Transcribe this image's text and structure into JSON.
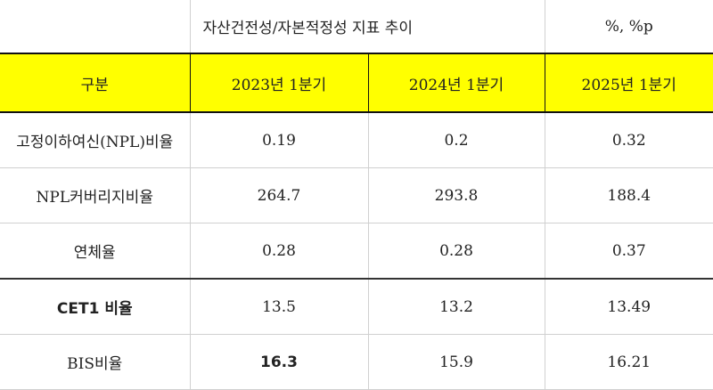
{
  "header": {
    "title": "자산건전성/자본적정성 지표 추이",
    "unit": "%, %p"
  },
  "table": {
    "columns": [
      "구분",
      "2023년 1분기",
      "2024년 1분기",
      "2025년 1분기"
    ],
    "rows": [
      [
        "고정이하여신(NPL)비율",
        "0.19",
        "0.2",
        "0.32"
      ],
      [
        "NPL커버리지비율",
        "264.7",
        "293.8",
        "188.4"
      ],
      [
        "연체율",
        "0.28",
        "0.28",
        "0.37"
      ],
      [
        "CET1 비율",
        "13.5",
        "13.2",
        "13.49"
      ],
      [
        "BIS비율",
        "16.3",
        "15.9",
        "16.21"
      ]
    ]
  }
}
